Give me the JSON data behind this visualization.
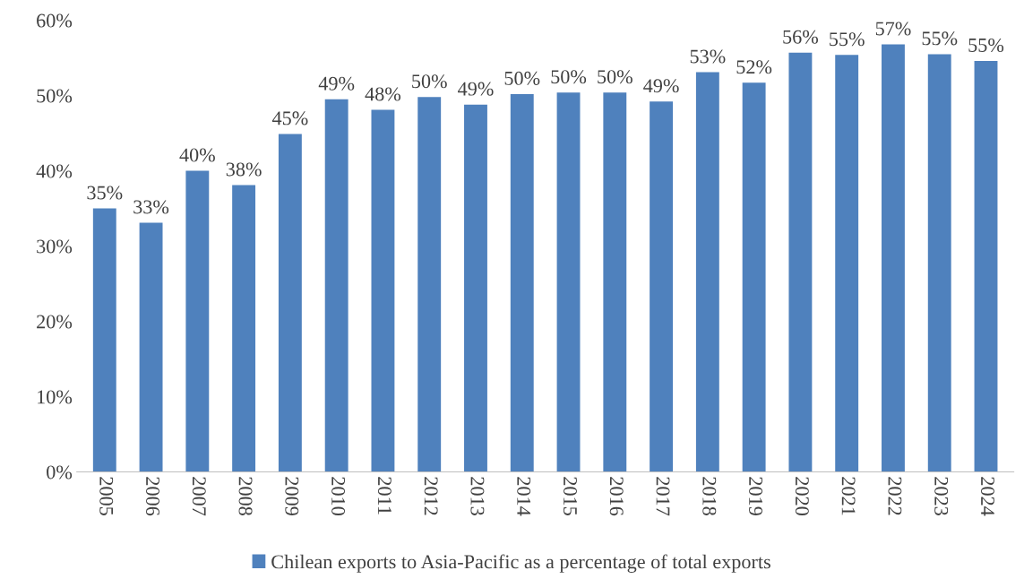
{
  "chart_data": {
    "type": "bar",
    "categories": [
      "2005",
      "2006",
      "2007",
      "2008",
      "2009",
      "2010",
      "2011",
      "2012",
      "2013",
      "2014",
      "2015",
      "2016",
      "2017",
      "2018",
      "2019",
      "2020",
      "2021",
      "2022",
      "2023",
      "2024"
    ],
    "series": [
      {
        "name": "Chilean exports to Asia-Pacific as a percentage of total exports",
        "color": "#4f81bd",
        "values": [
          35.0,
          33.1,
          40.0,
          38.1,
          44.9,
          49.5,
          48.1,
          49.8,
          48.8,
          50.2,
          50.4,
          50.4,
          49.2,
          53.1,
          51.7,
          55.7,
          55.4,
          56.8,
          55.5,
          54.6
        ],
        "value_labels": [
          "35%",
          "33%",
          "40%",
          "38%",
          "45%",
          "49%",
          "48%",
          "50%",
          "49%",
          "50%",
          "50%",
          "50%",
          "49%",
          "53%",
          "52%",
          "56%",
          "55%",
          "57%",
          "55%",
          "55%"
        ]
      }
    ],
    "ylim": [
      0,
      60
    ],
    "yticks": [
      {
        "value": 0,
        "label": "0%"
      },
      {
        "value": 10,
        "label": "10%"
      },
      {
        "value": 20,
        "label": "20%"
      },
      {
        "value": 30,
        "label": "30%"
      },
      {
        "value": 40,
        "label": "40%"
      },
      {
        "value": 50,
        "label": "50%"
      },
      {
        "value": 60,
        "label": "60%"
      }
    ],
    "legend": "bottom"
  }
}
